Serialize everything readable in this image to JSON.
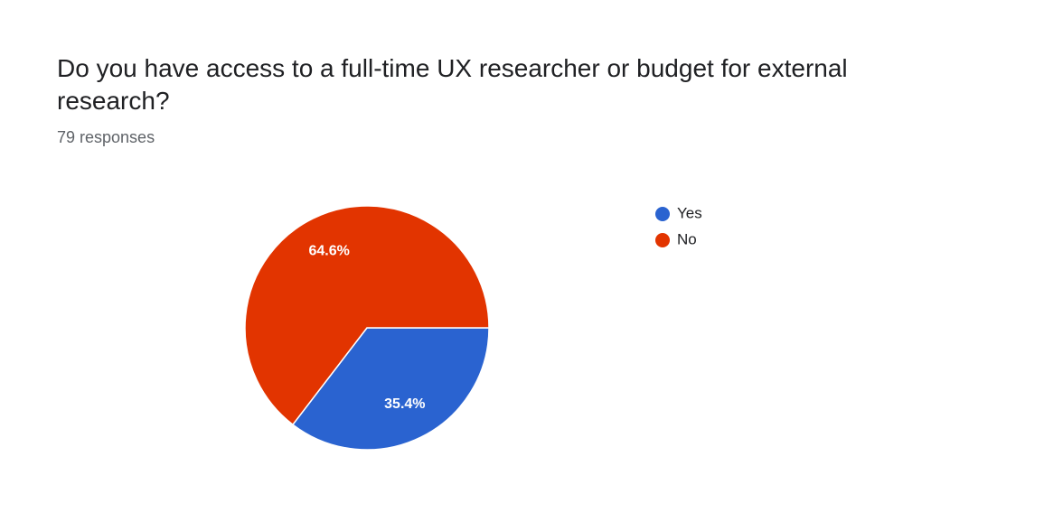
{
  "chart_data": {
    "type": "pie",
    "title": "Do you have access to a full-time UX researcher or budget for external research?",
    "subtitle": "79 responses",
    "categories": [
      "Yes",
      "No"
    ],
    "values": [
      35.4,
      64.6
    ],
    "value_labels": [
      "35.4%",
      "64.6%"
    ],
    "colors": [
      "#2a63d0",
      "#e23400"
    ],
    "legend": "right"
  }
}
